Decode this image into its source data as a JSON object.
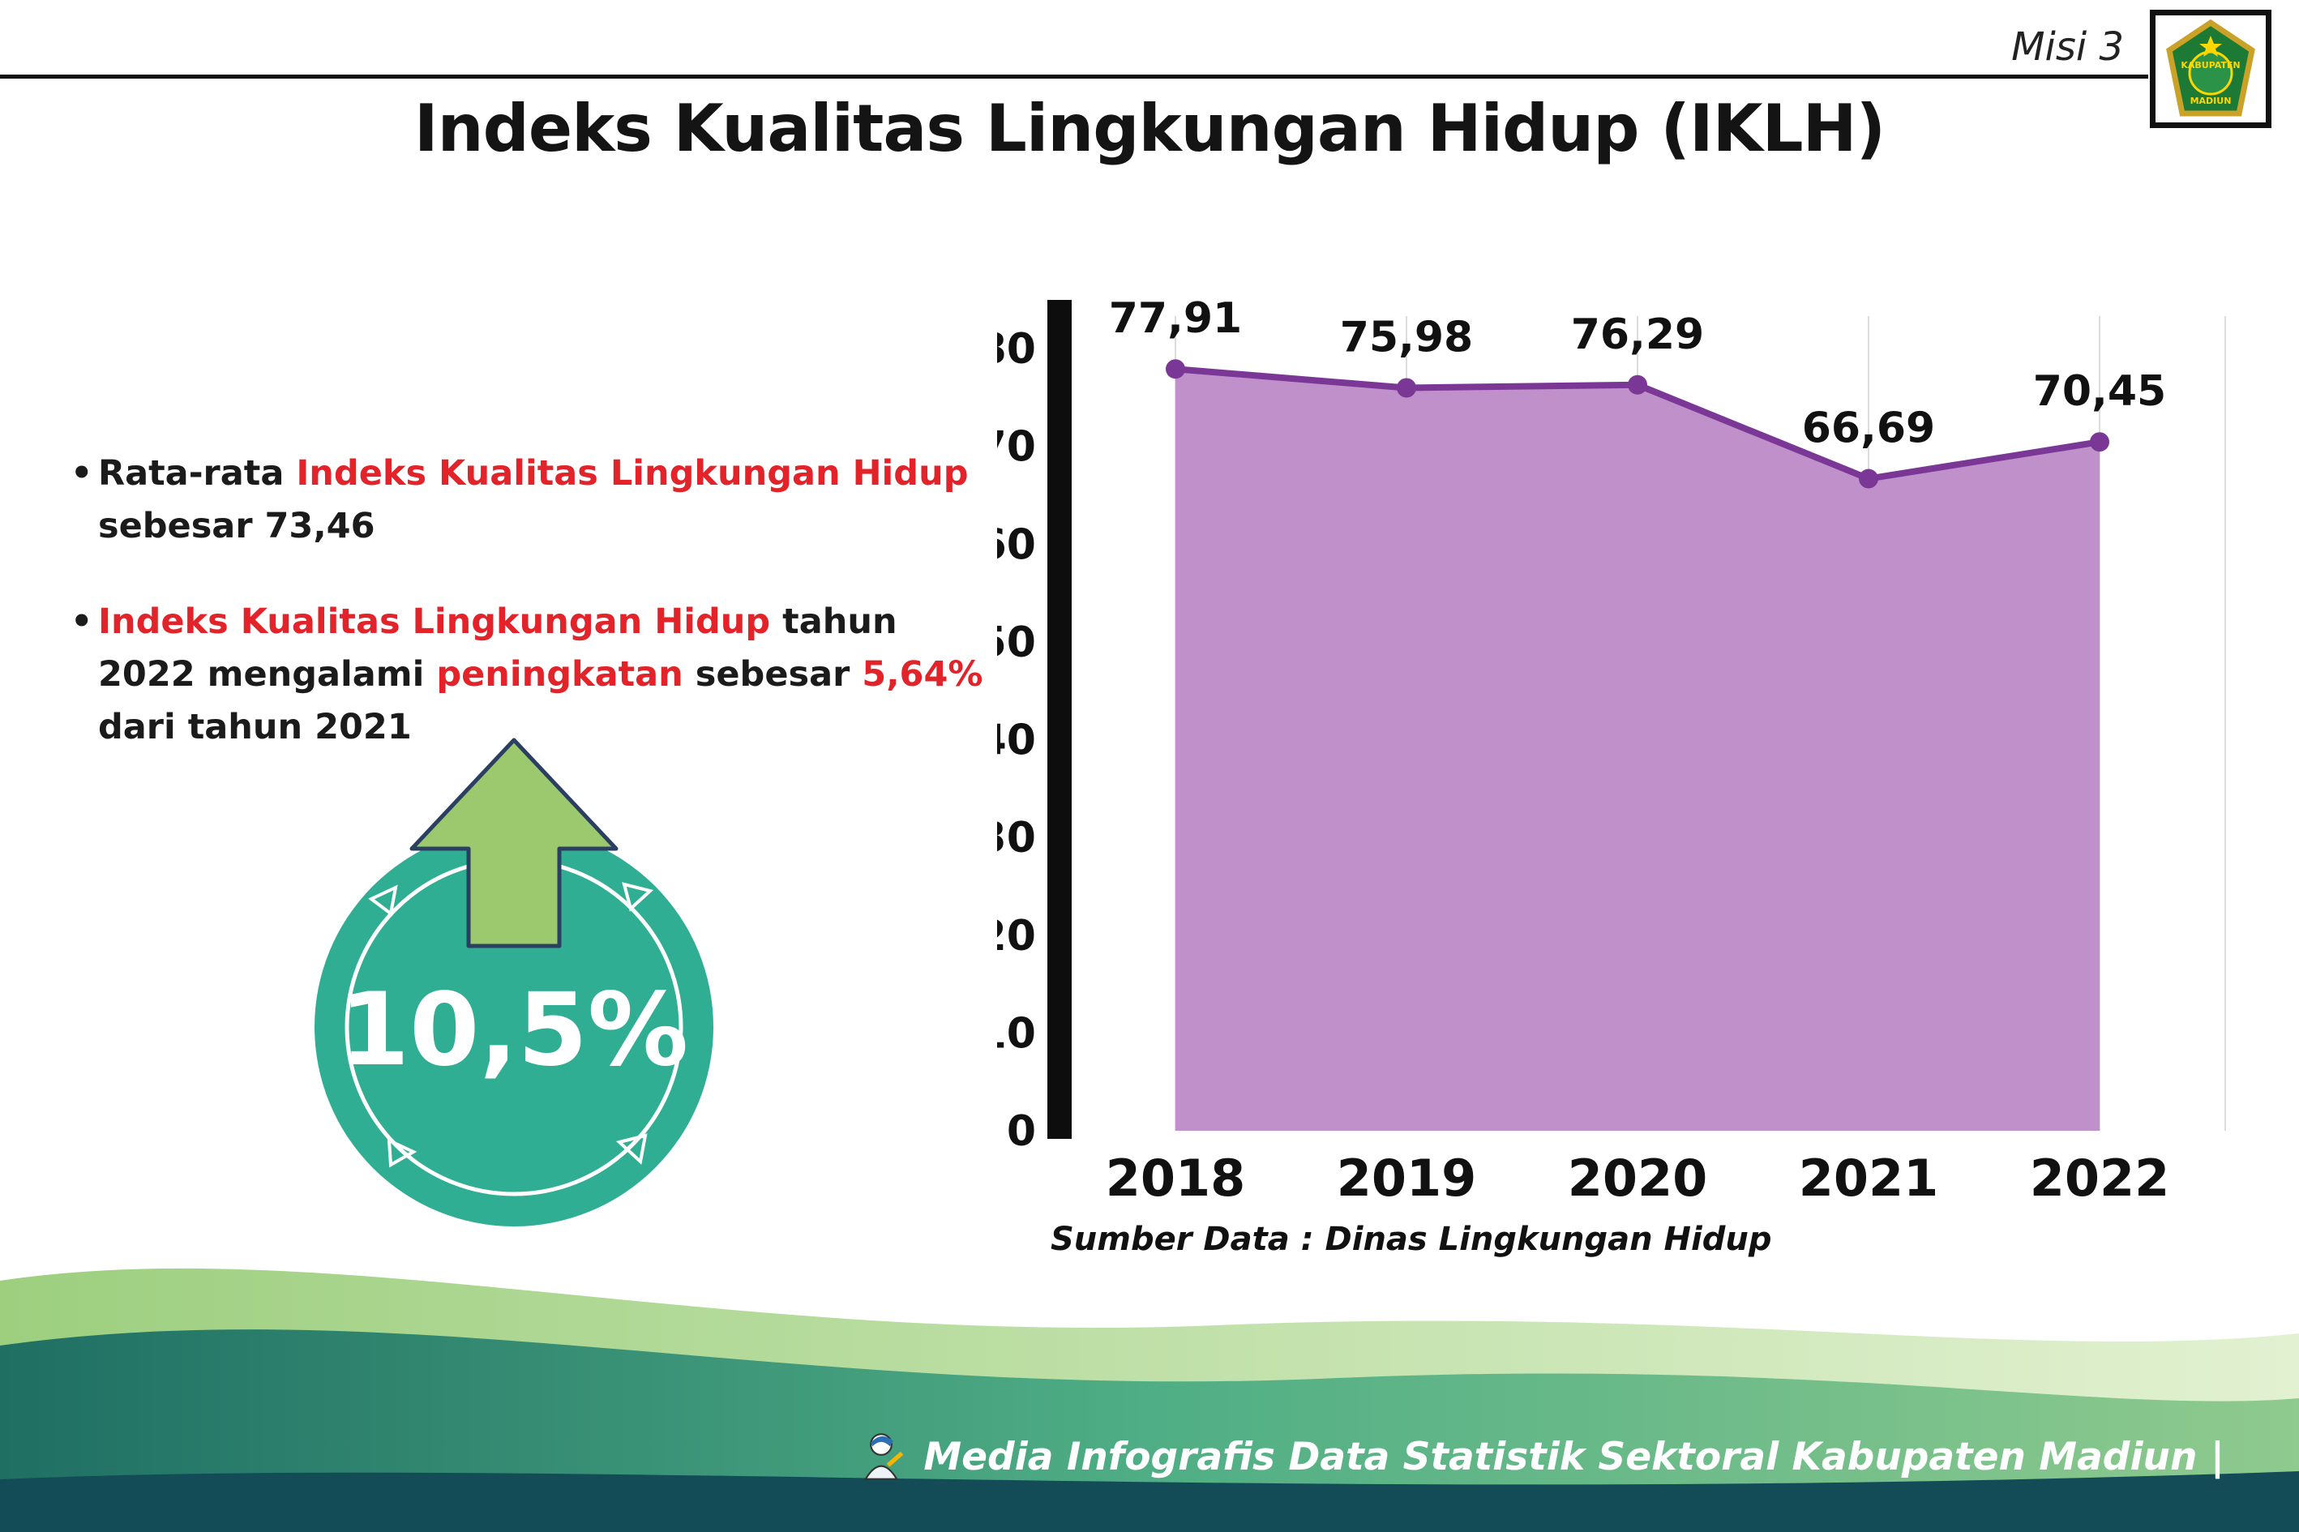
{
  "header": {
    "misi_label": "Misi 3",
    "title": "Indeks Kualitas Lingkungan Hidup (IKLH)",
    "logo": {
      "text_top": "KABUPATEN",
      "text_bottom": "MADIUN"
    }
  },
  "bullets": {
    "b1": {
      "s1": "Rata-rata ",
      "s2": "Indeks Kualitas Lingkungan Hidup",
      "s3": " sebesar 73,46"
    },
    "b2": {
      "s1": "Indeks Kualitas Lingkungan Hidup",
      "s2": " tahun 2022 mengalami ",
      "s3": "peningkatan",
      "s4": " sebesar ",
      "s5": "5,64%",
      "s6": " dari tahun 2021"
    }
  },
  "badge": {
    "value": "10,5%",
    "circle_color": "#2fae93",
    "arrow_color": "#9cc96d"
  },
  "chart_data": {
    "type": "area",
    "title": "Indeks Kualitas Lingkungan Hidup (IKLH)",
    "categories": [
      "2018",
      "2019",
      "2020",
      "2021",
      "2022"
    ],
    "values": [
      77.91,
      75.98,
      76.29,
      66.69,
      70.45
    ],
    "value_labels": [
      "77,91",
      "75,98",
      "76,29",
      "66,69",
      "70,45"
    ],
    "ylim": [
      0,
      80
    ],
    "ytick_step": 10,
    "grid": true,
    "legend": false,
    "fill_color": "#bf90c9",
    "line_color": "#7b3796",
    "axis_color": "#0d0d0d",
    "source": "Sumber Data : Dinas Lingkungan Hidup"
  },
  "footer": {
    "text": "Media Infografis Data Statistik Sektoral Kabupaten Madiun |"
  }
}
